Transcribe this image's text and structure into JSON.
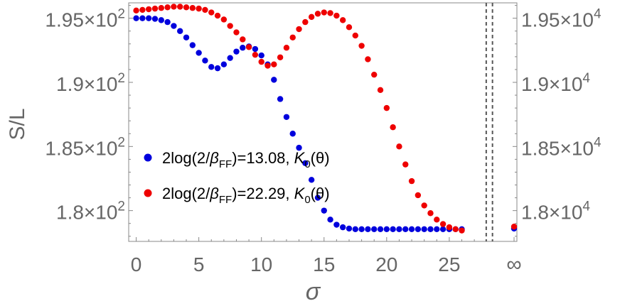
{
  "chart_data": {
    "type": "scatter",
    "title": "",
    "xlabel": "σ",
    "ylabel": "S/L",
    "x_ticks": [
      "0",
      "5",
      "10",
      "15",
      "20",
      "25"
    ],
    "x_infinity_label": "∞",
    "xlim": [
      -0.6,
      30.4
    ],
    "left_axis": {
      "ylim": [
        177.6,
        196.2
      ],
      "ticks": [
        {
          "value": 180,
          "mantissa": "1.8",
          "base": "×10",
          "exp": "2"
        },
        {
          "value": 185,
          "mantissa": "1.85",
          "base": "×10",
          "exp": "2"
        },
        {
          "value": 190,
          "mantissa": "1.9",
          "base": "×10",
          "exp": "2"
        },
        {
          "value": 195,
          "mantissa": "1.95",
          "base": "×10",
          "exp": "2"
        }
      ]
    },
    "right_axis": {
      "ylim": [
        17760,
        19620
      ],
      "ticks": [
        {
          "value": 18000,
          "mantissa": "1.8",
          "base": "×10",
          "exp": "4"
        },
        {
          "value": 18500,
          "mantissa": "1.85",
          "base": "×10",
          "exp": "4"
        },
        {
          "value": 19000,
          "mantissa": "1.9",
          "base": "×10",
          "exp": "4"
        },
        {
          "value": 19500,
          "mantissa": "1.95",
          "base": "×10",
          "exp": "4"
        }
      ]
    },
    "vertical_dashed_lines": [
      27.95,
      28.45
    ],
    "legend": [
      {
        "prefix": "2log(2/",
        "beta": "β",
        "sub": "FF",
        "suffix": ")=13.08, ",
        "kname": "K",
        "ksub": "0",
        "karg": "(θ)",
        "color": "#0000dd"
      },
      {
        "prefix": "2log(2/",
        "beta": "β",
        "sub": "FF",
        "suffix": ")=22.29, ",
        "kname": "K",
        "ksub": "0",
        "karg": "(θ)",
        "color": "#ee0000"
      }
    ],
    "series": [
      {
        "color": "#0000dd",
        "axis": "left",
        "x": [
          0,
          0.5,
          1,
          1.5,
          2,
          2.5,
          3,
          3.5,
          4,
          4.5,
          5,
          5.5,
          6,
          6.5,
          7,
          7.5,
          8,
          8.5,
          9,
          9.5,
          10,
          10.5,
          11,
          11.5,
          12,
          12.5,
          13,
          13.5,
          14,
          14.5,
          15,
          15.5,
          16,
          16.5,
          17,
          17.5,
          18,
          18.5,
          19,
          19.5,
          20,
          20.5,
          21,
          21.5,
          22,
          22.5,
          23,
          23.5,
          24,
          24.5,
          25,
          25.5,
          26
        ],
        "y": [
          195.0,
          195.0,
          195.0,
          194.95,
          194.85,
          194.7,
          194.4,
          194.0,
          193.5,
          192.9,
          192.3,
          191.7,
          191.2,
          191.1,
          191.4,
          191.9,
          192.4,
          192.7,
          192.8,
          192.6,
          192.1,
          191.4,
          190.2,
          188.7,
          187.3,
          186.0,
          184.9,
          183.7,
          182.4,
          181.0,
          180.0,
          179.3,
          178.9,
          178.7,
          178.6,
          178.55,
          178.55,
          178.55,
          178.55,
          178.55,
          178.55,
          178.55,
          178.55,
          178.55,
          178.55,
          178.55,
          178.55,
          178.55,
          178.55,
          178.55,
          178.55,
          178.55,
          178.55
        ]
      },
      {
        "color": "#ee0000",
        "axis": "right",
        "x": [
          0,
          0.5,
          1,
          1.5,
          2,
          2.5,
          3,
          3.5,
          4,
          4.5,
          5,
          5.5,
          6,
          6.5,
          7,
          7.5,
          8,
          8.5,
          9,
          9.5,
          10,
          10.5,
          11,
          11.5,
          12,
          12.5,
          13,
          13.5,
          14,
          14.5,
          15,
          15.5,
          16,
          16.5,
          17,
          17.5,
          18,
          18.5,
          19,
          19.5,
          20,
          20.5,
          21,
          21.5,
          22,
          22.5,
          23,
          23.5,
          24,
          24.5,
          25,
          25.5,
          26
        ],
        "y": [
          19560,
          19565,
          19570,
          19575,
          19580,
          19585,
          19590,
          19590,
          19585,
          19580,
          19575,
          19565,
          19545,
          19520,
          19490,
          19440,
          19390,
          19335,
          19275,
          19215,
          19160,
          19130,
          19140,
          19195,
          19270,
          19350,
          19415,
          19470,
          19510,
          19535,
          19545,
          19540,
          19520,
          19485,
          19430,
          19365,
          19285,
          19180,
          19060,
          18940,
          18800,
          18650,
          18500,
          18360,
          18230,
          18120,
          18040,
          17980,
          17930,
          17895,
          17870,
          17855,
          17845
        ]
      }
    ],
    "infinity_points": [
      {
        "color": "#0000dd",
        "axis": "left",
        "y": 178.6
      },
      {
        "color": "#ee0000",
        "axis": "right",
        "y": 17875
      }
    ]
  }
}
